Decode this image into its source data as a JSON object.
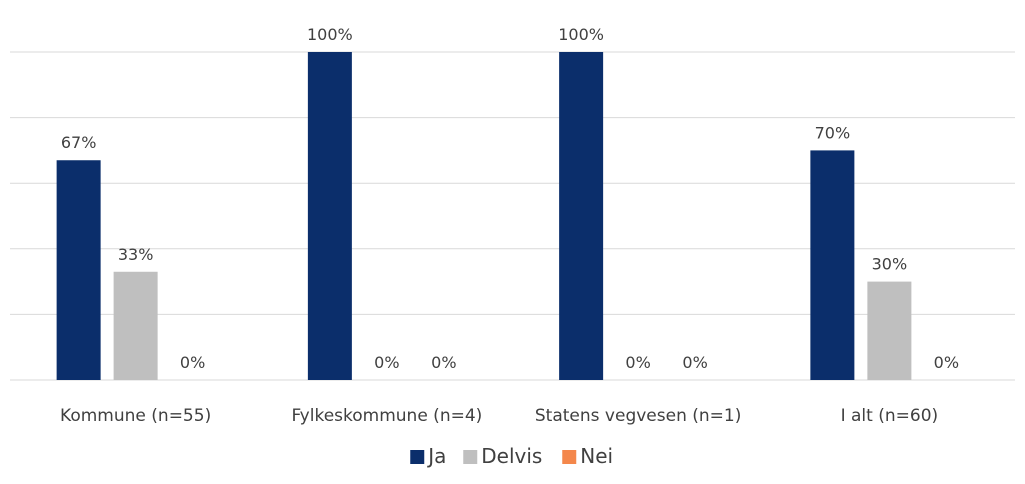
{
  "chart_data": {
    "type": "bar",
    "categories": [
      "Kommune (n=55)",
      "Fylkeskommune (n=4)",
      "Statens vegvesen (n=1)",
      "I alt (n=60)"
    ],
    "series": [
      {
        "name": "Ja",
        "color": "#0b2e6b",
        "values": [
          67,
          100,
          100,
          70
        ],
        "labels": [
          "67%",
          "100%",
          "100%",
          "70%"
        ]
      },
      {
        "name": "Delvis",
        "color": "#bfbfbf",
        "values": [
          33,
          0,
          0,
          30
        ],
        "labels": [
          "33%",
          "0%",
          "0%",
          "30%"
        ]
      },
      {
        "name": "Nei",
        "color": "#f4874b",
        "values": [
          0,
          0,
          0,
          0
        ],
        "labels": [
          "0%",
          "0%",
          "0%",
          "0%"
        ]
      }
    ],
    "ylim": [
      0,
      100
    ],
    "grid": true,
    "legend": "bottom"
  }
}
